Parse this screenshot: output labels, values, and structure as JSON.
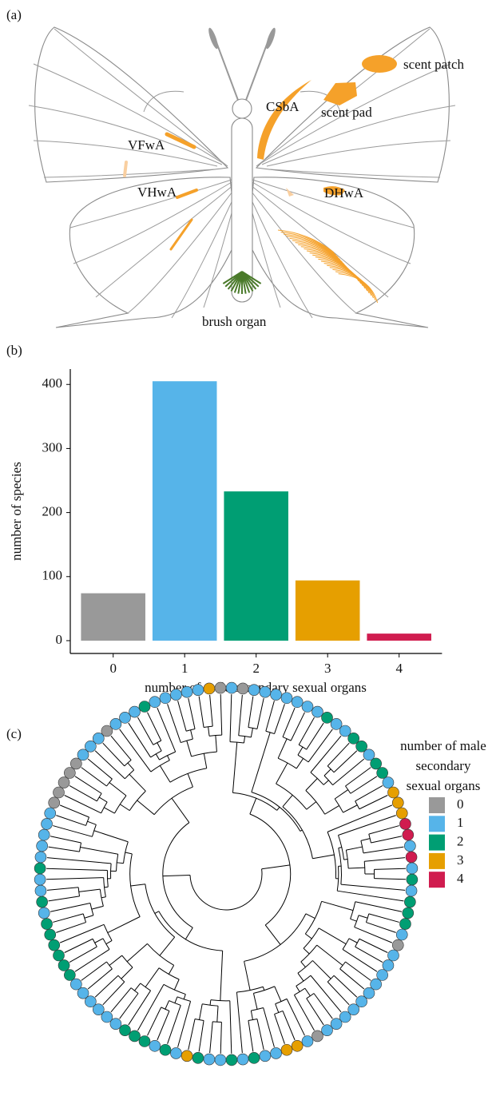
{
  "panel_a": {
    "label": "(a)",
    "organs": [
      "scent patch",
      "CSbA",
      "scent pad",
      "VFwA",
      "VHwA",
      "DHwA",
      "brush organ"
    ]
  },
  "chart_data": {
    "type": "bar",
    "panel_label": "(b)",
    "x_label": "number of male secondary sexual organs",
    "y_label": "number of species",
    "categories": [
      "0",
      "1",
      "2",
      "3",
      "4"
    ],
    "values": [
      74,
      405,
      233,
      94,
      11
    ],
    "colors": [
      "#999999",
      "#56b4e9",
      "#009e73",
      "#e69f00",
      "#d01c4f"
    ],
    "ylim": [
      -20,
      424
    ],
    "yticks": [
      0,
      100,
      200,
      300,
      400
    ]
  },
  "panel_c": {
    "label": "(c)",
    "legend_title_lines": [
      "number of male",
      "secondary",
      "sexual organs"
    ],
    "legend_labels": [
      "0",
      "1",
      "2",
      "3",
      "4"
    ],
    "legend_colors": [
      "#999999",
      "#56b4e9",
      "#009e73",
      "#e69f00",
      "#d01c4f"
    ],
    "tips": [
      1,
      0,
      1,
      1,
      1,
      1,
      1,
      1,
      1,
      2,
      1,
      1,
      2,
      2,
      1,
      2,
      2,
      1,
      3,
      3,
      3,
      4,
      4,
      1,
      4,
      1,
      2,
      1,
      2,
      2,
      2,
      1,
      0,
      1,
      1,
      1,
      1,
      1,
      1,
      1,
      1,
      1,
      1,
      0,
      1,
      3,
      3,
      1,
      1,
      2,
      1,
      2,
      1,
      1,
      2,
      3,
      1,
      2,
      1,
      2,
      2,
      2,
      1,
      1,
      1,
      1,
      1,
      1,
      2,
      2,
      2,
      2,
      2,
      2,
      1,
      2,
      1,
      1,
      2,
      1,
      1,
      1,
      1,
      1,
      0,
      0,
      0,
      0,
      0,
      1,
      1,
      1,
      0,
      1,
      1,
      1,
      2,
      1,
      1,
      1,
      1,
      1,
      3,
      0
    ]
  }
}
